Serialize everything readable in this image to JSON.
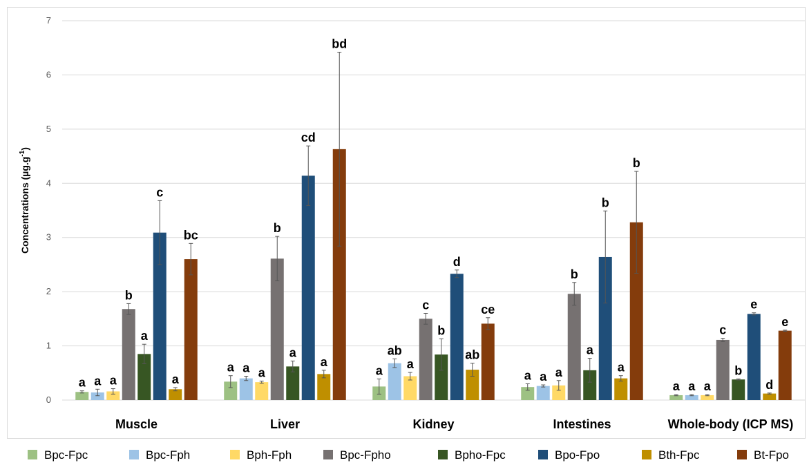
{
  "chart_data": {
    "type": "bar",
    "ylabel_main": "Concentrations (µg.g",
    "ylabel_sup": "-1",
    "ylabel_end": ")",
    "ylim": [
      0,
      7
    ],
    "yticks": [
      "0",
      "1",
      "2",
      "3",
      "4",
      "5",
      "6",
      "7"
    ],
    "grid": true,
    "legend_position": "bottom",
    "categories": [
      "Muscle",
      "Liver",
      "Kidney",
      "Intestines",
      "Whole-body (ICP MS)"
    ],
    "series": [
      {
        "name": "Bpc-Fpc",
        "color": "#9dc183",
        "values": [
          0.15,
          0.34,
          0.25,
          0.24,
          0.09
        ],
        "errors": [
          0.02,
          0.11,
          0.14,
          0.06,
          0.01
        ],
        "labels": [
          "a",
          "a",
          "a",
          "a",
          "a"
        ]
      },
      {
        "name": "Bpc-Fph",
        "color": "#9dc3e6",
        "values": [
          0.14,
          0.4,
          0.68,
          0.26,
          0.09
        ],
        "errors": [
          0.06,
          0.04,
          0.08,
          0.02,
          0.01
        ],
        "labels": [
          "a",
          "a",
          "ab",
          "a",
          "a"
        ]
      },
      {
        "name": "Bph-Fph",
        "color": "#ffd966",
        "values": [
          0.16,
          0.33,
          0.44,
          0.27,
          0.09
        ],
        "errors": [
          0.05,
          0.02,
          0.07,
          0.09,
          0.01
        ],
        "labels": [
          "a",
          "a",
          "a",
          "a",
          "a"
        ]
      },
      {
        "name": "Bpc-Fpho",
        "color": "#767171",
        "values": [
          1.68,
          2.61,
          1.5,
          1.96,
          1.11
        ],
        "errors": [
          0.1,
          0.41,
          0.1,
          0.21,
          0.03
        ],
        "labels": [
          "b",
          "b",
          "c",
          "b",
          "c"
        ]
      },
      {
        "name": "Bpho-Fpc",
        "color": "#375623",
        "values": [
          0.85,
          0.62,
          0.84,
          0.55,
          0.38
        ],
        "errors": [
          0.18,
          0.1,
          0.29,
          0.22,
          0.01
        ],
        "labels": [
          "a",
          "a",
          "b",
          "a",
          "b"
        ]
      },
      {
        "name": "Bpo-Fpo",
        "color": "#1f4e79",
        "values": [
          3.09,
          4.14,
          2.33,
          2.64,
          1.59
        ],
        "errors": [
          0.59,
          0.55,
          0.07,
          0.85,
          0.02
        ],
        "labels": [
          "c",
          "cd",
          "d",
          "b",
          "e"
        ]
      },
      {
        "name": "Bth-Fpc",
        "color": "#bf8f00",
        "values": [
          0.2,
          0.48,
          0.56,
          0.4,
          0.12
        ],
        "errors": [
          0.03,
          0.07,
          0.12,
          0.05,
          0.01
        ],
        "labels": [
          "a",
          "a",
          "ab",
          "a",
          "d"
        ]
      },
      {
        "name": "Bt-Fpo",
        "color": "#843c0c",
        "values": [
          2.6,
          4.63,
          1.41,
          3.28,
          1.28
        ],
        "errors": [
          0.29,
          1.79,
          0.11,
          0.94,
          0.01
        ],
        "labels": [
          "bc",
          "bd",
          "ce",
          "b",
          "e"
        ]
      }
    ]
  }
}
